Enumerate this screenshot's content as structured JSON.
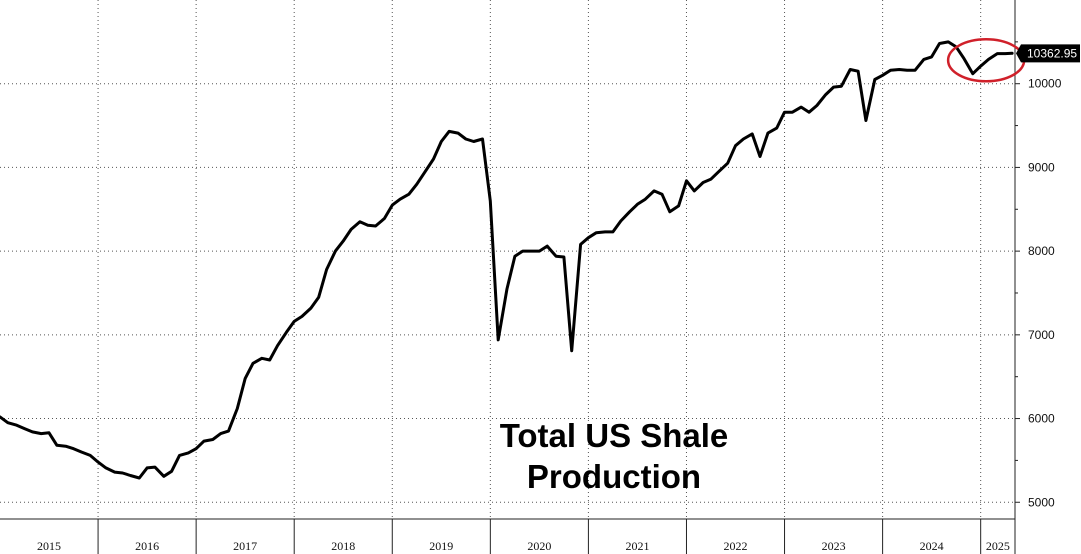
{
  "chart_data": {
    "type": "line",
    "title": [
      "Total US Shale",
      "Production"
    ],
    "xlabel": "",
    "ylabel": "",
    "xlim": [
      2015.0,
      2025.35
    ],
    "ylim": [
      4800,
      11000
    ],
    "y_ticks": [
      5000,
      6000,
      7000,
      8000,
      9000,
      10000
    ],
    "x_tick_labels": [
      "2015",
      "2016",
      "2017",
      "2018",
      "2019",
      "2020",
      "2021",
      "2022",
      "2023",
      "2024",
      "2025"
    ],
    "grid": true,
    "last_value_label": "10362.95",
    "highlight_color": "#d0202a",
    "series": [
      {
        "color": "#000000",
        "x": [
          2015.0,
          2015.08,
          2015.17,
          2015.25,
          2015.33,
          2015.42,
          2015.5,
          2015.58,
          2015.67,
          2015.75,
          2015.83,
          2015.92,
          2016.0,
          2016.08,
          2016.17,
          2016.25,
          2016.33,
          2016.42,
          2016.5,
          2016.58,
          2016.67,
          2016.75,
          2016.83,
          2016.92,
          2017.0,
          2017.08,
          2017.17,
          2017.25,
          2017.33,
          2017.42,
          2017.5,
          2017.58,
          2017.67,
          2017.75,
          2017.83,
          2017.92,
          2018.0,
          2018.08,
          2018.17,
          2018.25,
          2018.33,
          2018.42,
          2018.5,
          2018.58,
          2018.67,
          2018.75,
          2018.83,
          2018.92,
          2019.0,
          2019.08,
          2019.17,
          2019.25,
          2019.33,
          2019.42,
          2019.5,
          2019.58,
          2019.67,
          2019.75,
          2019.83,
          2019.92,
          2020.0,
          2020.08,
          2020.17,
          2020.25,
          2020.33,
          2020.42,
          2020.5,
          2020.58,
          2020.67,
          2020.75,
          2020.83,
          2020.92,
          2021.0,
          2021.08,
          2021.17,
          2021.25,
          2021.33,
          2021.42,
          2021.5,
          2021.58,
          2021.67,
          2021.75,
          2021.83,
          2021.92,
          2022.0,
          2022.08,
          2022.17,
          2022.25,
          2022.33,
          2022.42,
          2022.5,
          2022.58,
          2022.67,
          2022.75,
          2022.83,
          2022.92,
          2023.0,
          2023.08,
          2023.17,
          2023.25,
          2023.33,
          2023.42,
          2023.5,
          2023.58,
          2023.67,
          2023.75,
          2023.83,
          2023.92,
          2024.0,
          2024.08,
          2024.17,
          2024.25,
          2024.33,
          2024.42,
          2024.5,
          2024.58,
          2024.67,
          2024.75,
          2024.83,
          2024.92,
          2025.0,
          2025.08,
          2025.17,
          2025.25,
          2025.32
        ],
        "values": [
          6020,
          5950,
          5920,
          5880,
          5840,
          5820,
          5830,
          5680,
          5670,
          5640,
          5600,
          5560,
          5480,
          5410,
          5360,
          5350,
          5320,
          5290,
          5410,
          5420,
          5310,
          5370,
          5560,
          5590,
          5640,
          5730,
          5750,
          5820,
          5850,
          6120,
          6480,
          6660,
          6720,
          6700,
          6870,
          7030,
          7160,
          7220,
          7320,
          7450,
          7780,
          8000,
          8120,
          8260,
          8350,
          8310,
          8300,
          8390,
          8550,
          8620,
          8680,
          8800,
          8940,
          9100,
          9310,
          9430,
          9410,
          9340,
          9310,
          9340,
          8600,
          6940,
          7550,
          7940,
          8000,
          8000,
          8000,
          8060,
          7940,
          7930,
          6810,
          8080,
          8160,
          8220,
          8230,
          8230,
          8360,
          8470,
          8560,
          8620,
          8720,
          8680,
          8470,
          8540,
          8840,
          8720,
          8820,
          8860,
          8950,
          9050,
          9260,
          9340,
          9400,
          9130,
          9410,
          9470,
          9660,
          9660,
          9720,
          9660,
          9740,
          9870,
          9960,
          9970,
          10170,
          10150,
          9560,
          10050,
          10100,
          10160,
          10170,
          10160,
          10160,
          10290,
          10320,
          10480,
          10500,
          10440,
          10300,
          10120,
          10210,
          10290,
          10360,
          10360,
          10363
        ]
      }
    ]
  }
}
